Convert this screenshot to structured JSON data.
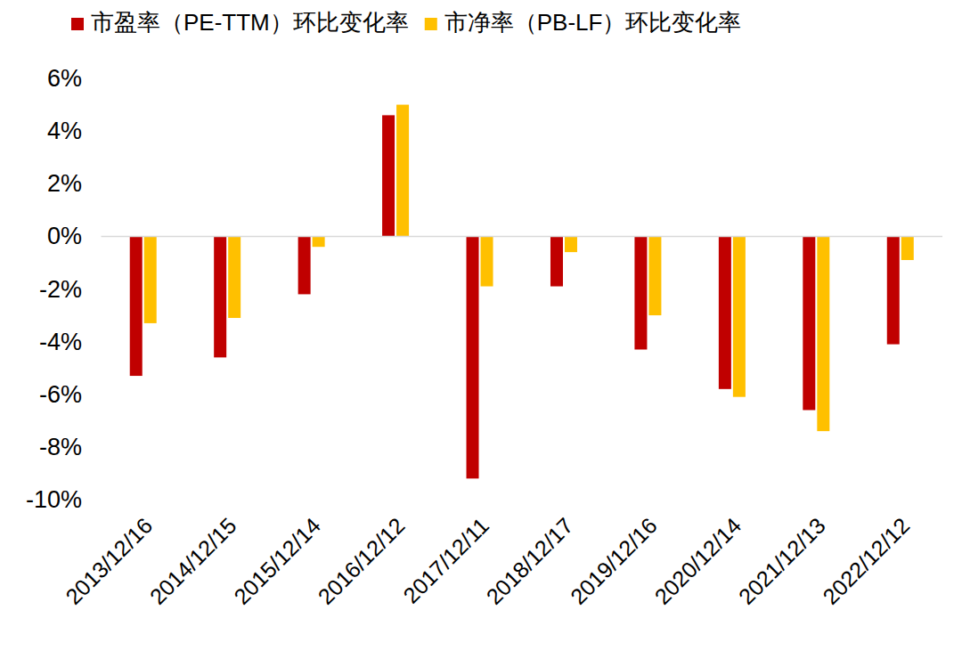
{
  "chart_data": {
    "type": "bar",
    "categories": [
      "2013/12/16",
      "2014/12/15",
      "2015/12/14",
      "2016/12/12",
      "2017/12/11",
      "2018/12/17",
      "2019/12/16",
      "2020/12/14",
      "2021/12/13",
      "2022/12/12"
    ],
    "series": [
      {
        "name": "市盈率（PE-TTM）环比变化率",
        "color": "#c00000",
        "values": [
          -5.3,
          -4.6,
          -2.2,
          4.6,
          -9.2,
          -1.9,
          -4.3,
          -5.8,
          -6.6,
          -4.1
        ]
      },
      {
        "name": "市净率（PB-LF）环比变化率",
        "color": "#ffc000",
        "values": [
          -3.3,
          -3.1,
          -0.4,
          5.0,
          -1.9,
          -0.6,
          -3.0,
          -6.1,
          -7.4,
          -0.9
        ]
      }
    ],
    "ylim": [
      -10,
      6
    ],
    "yticks": [
      {
        "value": -10,
        "label": "-10%"
      },
      {
        "value": -8,
        "label": "-8%"
      },
      {
        "value": -6,
        "label": "-6%"
      },
      {
        "value": -4,
        "label": "-4%"
      },
      {
        "value": -2,
        "label": "-2%"
      },
      {
        "value": 0,
        "label": "0%"
      },
      {
        "value": 2,
        "label": "2%"
      },
      {
        "value": 4,
        "label": "4%"
      },
      {
        "value": 6,
        "label": "6%"
      }
    ],
    "grid": false,
    "legend": "top"
  }
}
